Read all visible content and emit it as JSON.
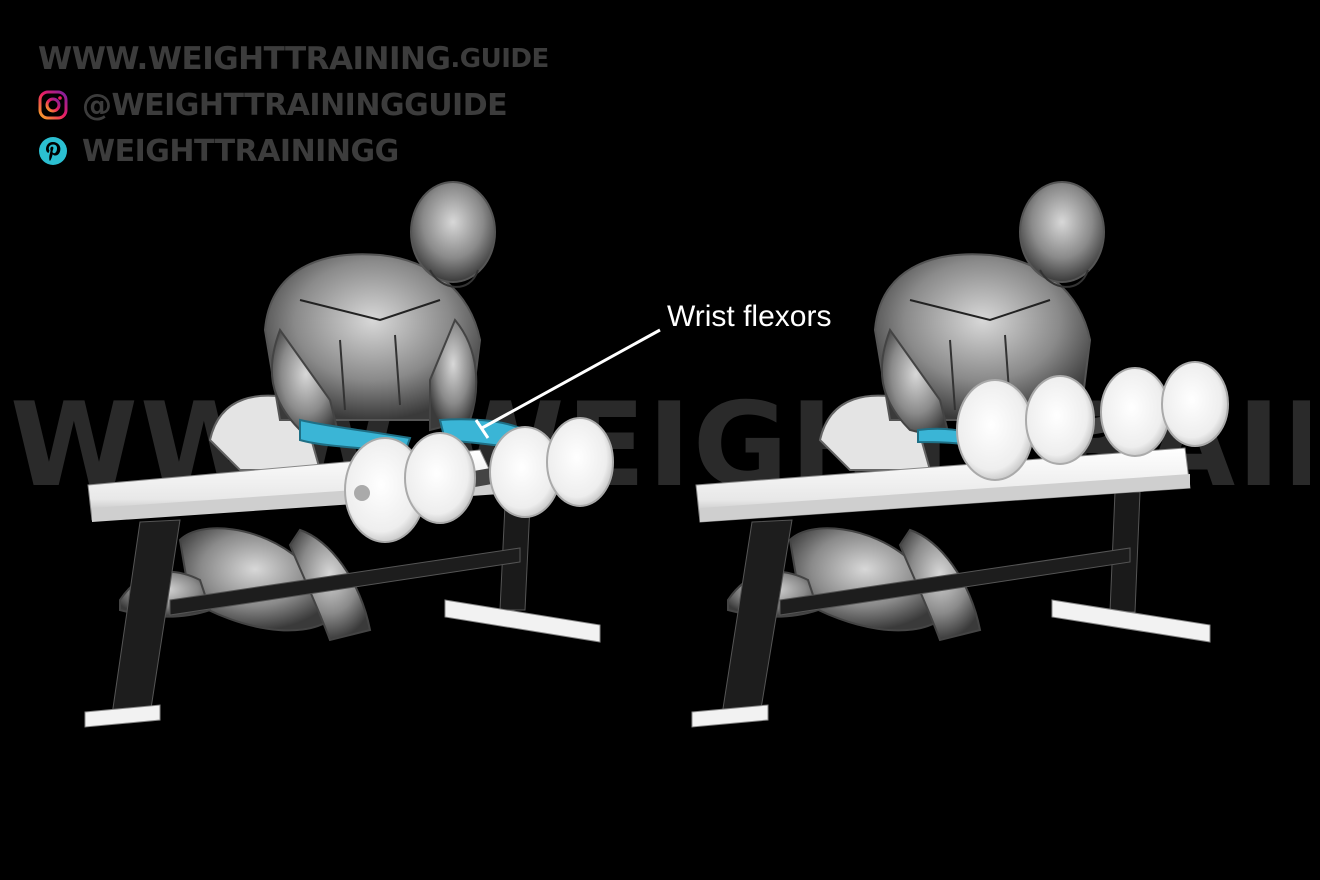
{
  "watermark": {
    "text": "WWW.WEIGHTTRAINING.GUIDE"
  },
  "brand": {
    "url_main": "WWW.WEIGHTTRAINING",
    "url_tld": ".GUIDE",
    "instagram_handle": "@WEIGHTTRAININGGUIDE",
    "pinterest_handle": "WEIGHTTRAININGG"
  },
  "annotation": {
    "label": "Wrist flexors"
  },
  "colors": {
    "background": "#000000",
    "highlight_muscle": "#3ab5d6",
    "brand_text": "#3c3c3c",
    "instagram_gradient": [
      "#f9a825",
      "#e91e63",
      "#7b1fa2"
    ],
    "pinterest": "#2bbfd1"
  },
  "icons": {
    "instagram": "instagram-icon",
    "pinterest": "pinterest-icon"
  }
}
